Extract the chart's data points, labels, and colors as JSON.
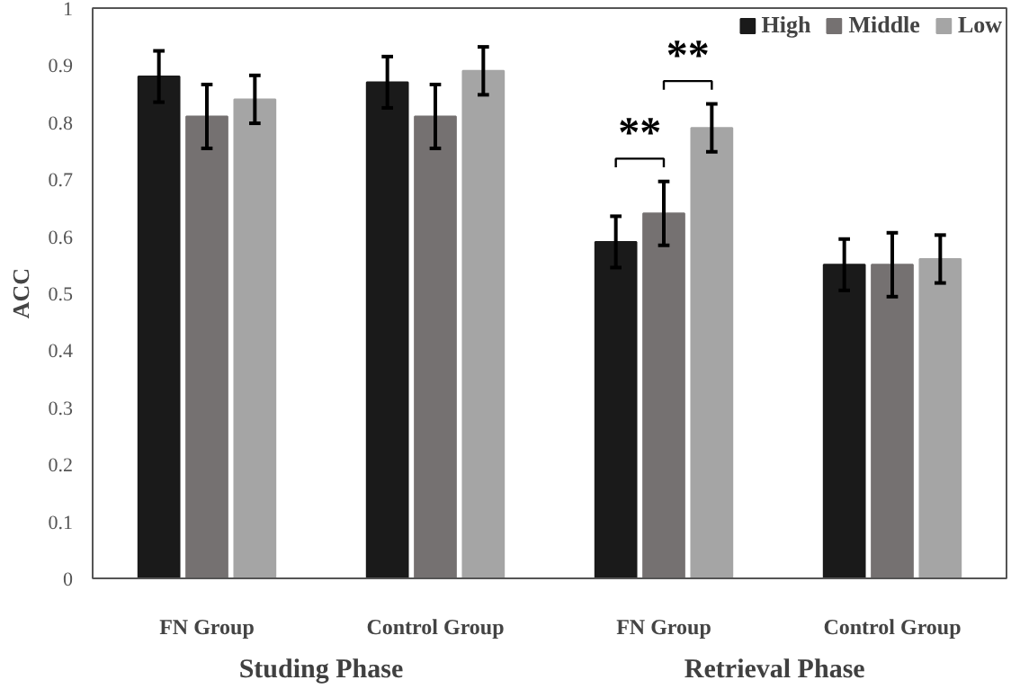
{
  "chart_data": {
    "type": "bar",
    "ylabel": "ACC",
    "categories": [
      "FN Group",
      "Control Group",
      "FN Group",
      "Control Group"
    ],
    "series": [
      {
        "name": "High",
        "color": "#1a1a1a",
        "values": [
          0.88,
          0.87,
          0.59,
          0.55
        ],
        "errors": [
          0.045,
          0.045,
          0.045,
          0.045
        ]
      },
      {
        "name": "Middle",
        "color": "#757171",
        "values": [
          0.81,
          0.81,
          0.64,
          0.55
        ],
        "errors": [
          0.056,
          0.056,
          0.056,
          0.056
        ]
      },
      {
        "name": "Low",
        "color": "#a5a5a5",
        "values": [
          0.84,
          0.89,
          0.79,
          0.56
        ],
        "errors": [
          0.042,
          0.042,
          0.042,
          0.042
        ]
      }
    ],
    "ylim": [
      0,
      1
    ],
    "yticks": [
      0,
      0.1,
      0.2,
      0.3,
      0.4,
      0.5,
      0.6,
      0.7,
      0.8,
      0.9,
      1
    ],
    "grid": false,
    "legend": "top right",
    "annotations": [
      "**",
      "**",
      "Studing Phase",
      "Retrieval  Phase"
    ]
  }
}
